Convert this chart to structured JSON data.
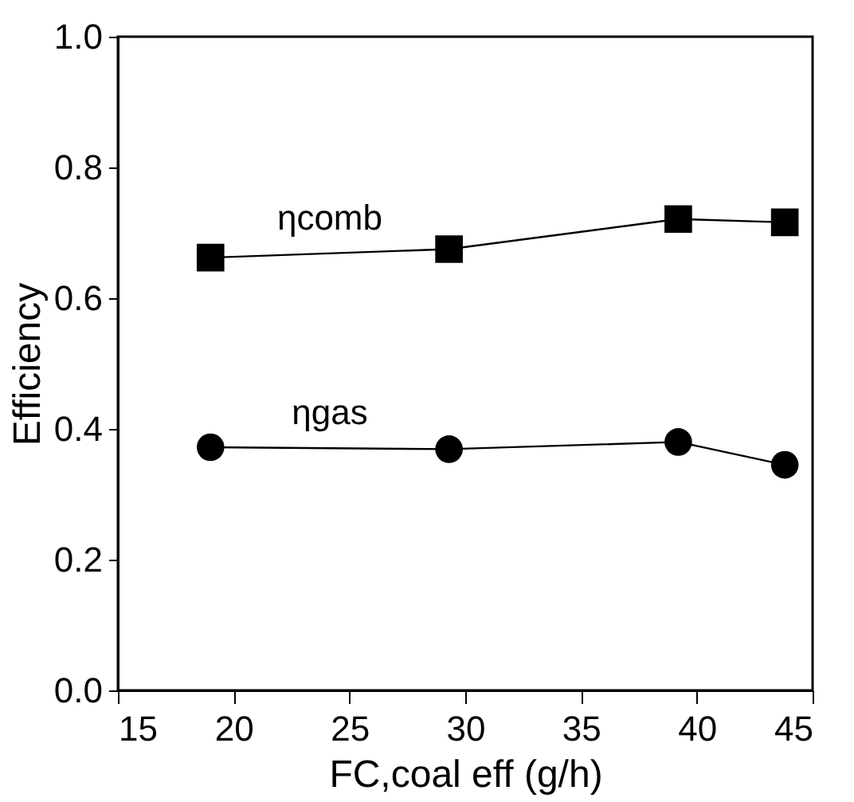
{
  "chart_data": {
    "type": "line",
    "xlabel": "FC,coal eff (g/h)",
    "ylabel": "Efficiency",
    "xlim": [
      15,
      45
    ],
    "xticks": [
      15,
      20,
      25,
      30,
      35,
      40,
      45
    ],
    "ylim": [
      0,
      1.0
    ],
    "yticks": [
      {
        "value": 0,
        "label": "0.0"
      },
      {
        "value": 0.2,
        "label": "0.2"
      },
      {
        "value": 0.4,
        "label": "0.4"
      },
      {
        "value": 0.6,
        "label": "0.6"
      },
      {
        "value": 0.8,
        "label": "0.8"
      },
      {
        "value": 1.0,
        "label": "1.0"
      }
    ],
    "grid": false,
    "line_style": "solid",
    "x": [
      19.0,
      29.3,
      39.2,
      43.8
    ],
    "series": [
      {
        "name": "ηcomb",
        "color": "#000000",
        "marker": "square",
        "values": [
          0.662,
          0.675,
          0.721,
          0.716
        ]
      },
      {
        "name": "ηgas",
        "color": "#000000",
        "marker": "circle",
        "values": [
          0.372,
          0.369,
          0.38,
          0.345
        ]
      }
    ]
  }
}
